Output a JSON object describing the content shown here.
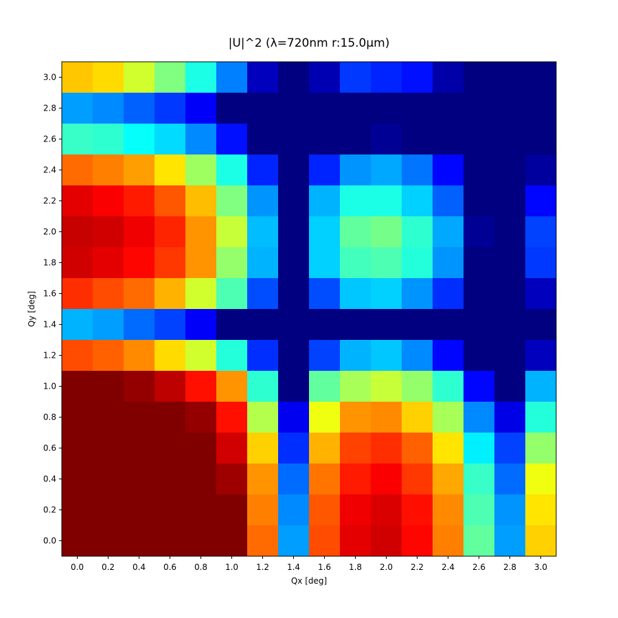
{
  "chart_data": {
    "type": "heatmap",
    "title": "|U|^2   (λ=720nm  r:15.0μm)",
    "xlabel": "Qx [deg]",
    "ylabel": "Qy [deg]",
    "x": [
      0.0,
      0.2,
      0.4,
      0.6,
      0.8,
      1.0,
      1.2,
      1.4,
      1.6,
      1.8,
      2.0,
      2.2,
      2.4,
      2.6,
      2.8,
      3.0
    ],
    "y": [
      0.0,
      0.2,
      0.4,
      0.6,
      0.8,
      1.0,
      1.2,
      1.4,
      1.6,
      1.8,
      2.0,
      2.2,
      2.4,
      2.6,
      2.8,
      3.0
    ],
    "xticks": [
      "0.0",
      "0.2",
      "0.4",
      "0.6",
      "0.8",
      "1.0",
      "1.2",
      "1.4",
      "1.6",
      "1.8",
      "2.0",
      "2.2",
      "2.4",
      "2.6",
      "2.8",
      "3.0"
    ],
    "yticks": [
      "0.0",
      "0.2",
      "0.4",
      "0.6",
      "0.8",
      "1.0",
      "1.2",
      "1.4",
      "1.6",
      "1.8",
      "2.0",
      "2.2",
      "2.4",
      "2.6",
      "2.8",
      "3.0"
    ],
    "colormap": "jet",
    "value_range": [
      0,
      1
    ],
    "z_rows_top_to_bottom": [
      [
        0.68,
        0.66,
        0.58,
        0.5,
        0.4,
        0.25,
        0.06,
        0.0,
        0.05,
        0.18,
        0.16,
        0.14,
        0.04,
        0.0,
        0.0,
        0.0
      ],
      [
        0.28,
        0.26,
        0.22,
        0.18,
        0.12,
        0.0,
        0.0,
        0.0,
        0.0,
        0.0,
        0.0,
        0.0,
        0.0,
        0.0,
        0.0,
        0.0
      ],
      [
        0.43,
        0.42,
        0.38,
        0.34,
        0.26,
        0.14,
        0.0,
        0.0,
        0.0,
        0.0,
        0.02,
        0.0,
        0.0,
        0.0,
        0.0,
        0.0
      ],
      [
        0.77,
        0.75,
        0.72,
        0.65,
        0.53,
        0.4,
        0.16,
        0.0,
        0.16,
        0.27,
        0.29,
        0.24,
        0.13,
        0.0,
        0.0,
        0.03
      ],
      [
        0.9,
        0.88,
        0.85,
        0.79,
        0.69,
        0.5,
        0.27,
        0.0,
        0.3,
        0.4,
        0.4,
        0.33,
        0.22,
        0.0,
        0.0,
        0.13
      ],
      [
        0.93,
        0.92,
        0.89,
        0.84,
        0.73,
        0.57,
        0.31,
        0.0,
        0.33,
        0.47,
        0.49,
        0.42,
        0.29,
        0.02,
        0.0,
        0.19
      ],
      [
        0.92,
        0.9,
        0.87,
        0.82,
        0.73,
        0.52,
        0.3,
        0.0,
        0.33,
        0.44,
        0.45,
        0.41,
        0.27,
        0.0,
        0.0,
        0.18
      ],
      [
        0.83,
        0.8,
        0.77,
        0.7,
        0.58,
        0.45,
        0.2,
        0.0,
        0.2,
        0.32,
        0.33,
        0.27,
        0.17,
        0.0,
        0.0,
        0.06
      ],
      [
        0.3,
        0.28,
        0.23,
        0.19,
        0.12,
        0.0,
        0.0,
        0.0,
        0.0,
        0.0,
        0.0,
        0.0,
        0.0,
        0.0,
        0.0,
        0.0
      ],
      [
        0.8,
        0.78,
        0.74,
        0.66,
        0.58,
        0.41,
        0.17,
        0.0,
        0.19,
        0.3,
        0.32,
        0.26,
        0.13,
        0.0,
        0.0,
        0.06
      ],
      [
        1.0,
        1.0,
        0.98,
        0.94,
        0.86,
        0.73,
        0.42,
        0.0,
        0.47,
        0.54,
        0.57,
        0.52,
        0.42,
        0.13,
        0.0,
        0.3
      ],
      [
        1.0,
        1.0,
        1.0,
        1.0,
        0.98,
        0.86,
        0.55,
        0.11,
        0.61,
        0.73,
        0.74,
        0.67,
        0.54,
        0.26,
        0.1,
        0.41
      ],
      [
        1.0,
        1.0,
        1.0,
        1.0,
        1.0,
        0.92,
        0.67,
        0.17,
        0.7,
        0.81,
        0.83,
        0.78,
        0.65,
        0.36,
        0.19,
        0.52
      ],
      [
        1.0,
        1.0,
        1.0,
        1.0,
        1.0,
        0.97,
        0.73,
        0.23,
        0.76,
        0.85,
        0.88,
        0.82,
        0.71,
        0.43,
        0.23,
        0.61
      ],
      [
        1.0,
        1.0,
        1.0,
        1.0,
        1.0,
        1.0,
        0.75,
        0.26,
        0.79,
        0.89,
        0.91,
        0.86,
        0.74,
        0.45,
        0.27,
        0.65
      ],
      [
        1.0,
        1.0,
        1.0,
        1.0,
        1.0,
        1.0,
        0.77,
        0.28,
        0.8,
        0.9,
        0.92,
        0.87,
        0.75,
        0.47,
        0.28,
        0.67
      ]
    ]
  }
}
